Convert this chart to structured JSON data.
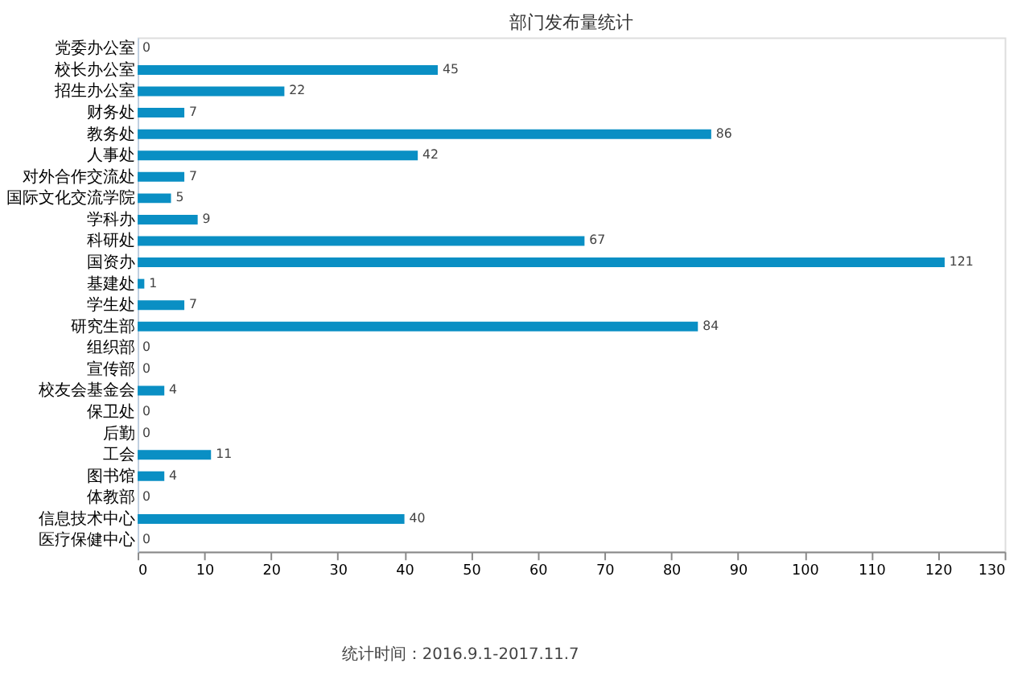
{
  "chart_data": {
    "type": "bar",
    "orientation": "horizontal",
    "title": "部门发布量统计",
    "categories": [
      "党委办公室",
      "校长办公室",
      "招生办公室",
      "财务处",
      "教务处",
      "人事处",
      "对外合作交流处",
      "国际文化交流学院",
      "学科办",
      "科研处",
      "国资办",
      "基建处",
      "学生处",
      "研究生部",
      "组织部",
      "宣传部",
      "校友会基金会",
      "保卫处",
      "后勤",
      "工会",
      "图书馆",
      "体教部",
      "信息技术中心",
      "医疗保健中心"
    ],
    "values": [
      0,
      45,
      22,
      7,
      86,
      42,
      7,
      5,
      9,
      67,
      121,
      1,
      7,
      84,
      0,
      0,
      4,
      0,
      0,
      11,
      4,
      0,
      40,
      0
    ],
    "color": "#0a8fc4",
    "xlim": [
      0,
      130
    ],
    "xticks": [
      0,
      10,
      20,
      30,
      40,
      50,
      60,
      70,
      80,
      90,
      100,
      110,
      120,
      130
    ],
    "grid": false,
    "data_labels": true,
    "annotations": [
      "统计时间：2016.9.1-2017.11.7"
    ]
  }
}
